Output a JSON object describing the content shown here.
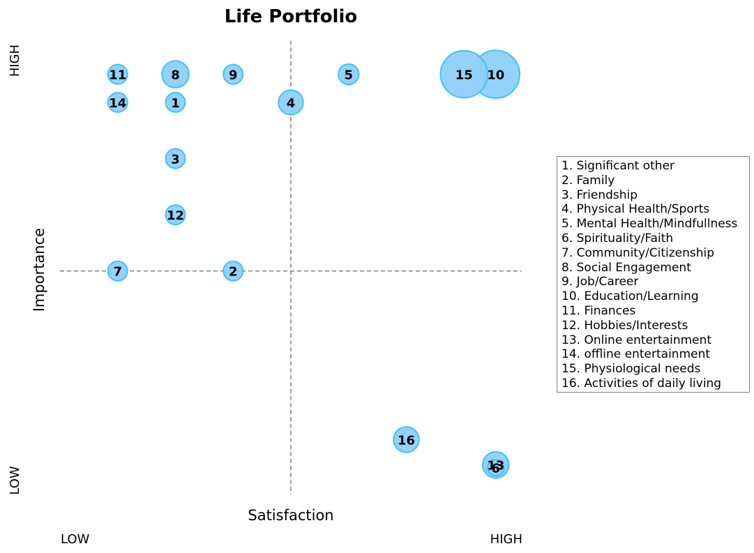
{
  "chart_data": {
    "type": "scatter",
    "title": "Life Portfolio",
    "xlabel": "Satisfaction",
    "ylabel": "Importance",
    "x_low_label": "LOW",
    "x_high_label": "HIGH",
    "y_low_label": "LOW",
    "y_high_label": "HIGH",
    "xlim": [
      0,
      8
    ],
    "ylim": [
      0,
      8
    ],
    "midlines": {
      "x": 4,
      "y": 4
    },
    "grid": false,
    "legend_position": "right",
    "colors": {
      "fill": "#8fd0fb",
      "edge": "#3fc3f5"
    },
    "points": [
      {
        "label": "1",
        "x": 2.0,
        "y": 7.0,
        "size": 1.0
      },
      {
        "label": "2",
        "x": 3.0,
        "y": 4.0,
        "size": 1.0
      },
      {
        "label": "3",
        "x": 2.0,
        "y": 6.0,
        "size": 1.0
      },
      {
        "label": "4",
        "x": 4.0,
        "y": 7.0,
        "size": 1.6
      },
      {
        "label": "5",
        "x": 5.0,
        "y": 7.5,
        "size": 1.1
      },
      {
        "label": "6",
        "x": 7.55,
        "y": 0.5,
        "size": 0.7
      },
      {
        "label": "7",
        "x": 1.0,
        "y": 4.0,
        "size": 1.0
      },
      {
        "label": "8",
        "x": 2.0,
        "y": 7.5,
        "size": 1.9
      },
      {
        "label": "9",
        "x": 3.0,
        "y": 7.5,
        "size": 1.0
      },
      {
        "label": "10",
        "x": 7.55,
        "y": 7.5,
        "size": 6.0
      },
      {
        "label": "11",
        "x": 1.0,
        "y": 7.5,
        "size": 1.0
      },
      {
        "label": "12",
        "x": 2.0,
        "y": 5.0,
        "size": 1.0
      },
      {
        "label": "13",
        "x": 7.55,
        "y": 0.55,
        "size": 1.8
      },
      {
        "label": "14",
        "x": 1.0,
        "y": 7.0,
        "size": 1.0
      },
      {
        "label": "15",
        "x": 7.0,
        "y": 7.5,
        "size": 5.8
      },
      {
        "label": "16",
        "x": 6.0,
        "y": 1.0,
        "size": 1.7
      }
    ],
    "legend": [
      "1. Significant other",
      "2. Family",
      "3. Friendship",
      "4. Physical Health/Sports",
      "5. Mental Health/Mindfullness",
      "6. Spirituality/Faith",
      "7. Community/Citizenship",
      "8. Social Engagement",
      "9. Job/Career",
      "10. Education/Learning",
      "11. Finances",
      "12. Hobbies/Interests",
      "13. Online entertainment",
      "14. offline entertainment",
      "15. Physiological needs",
      "16. Activities of daily living"
    ]
  }
}
